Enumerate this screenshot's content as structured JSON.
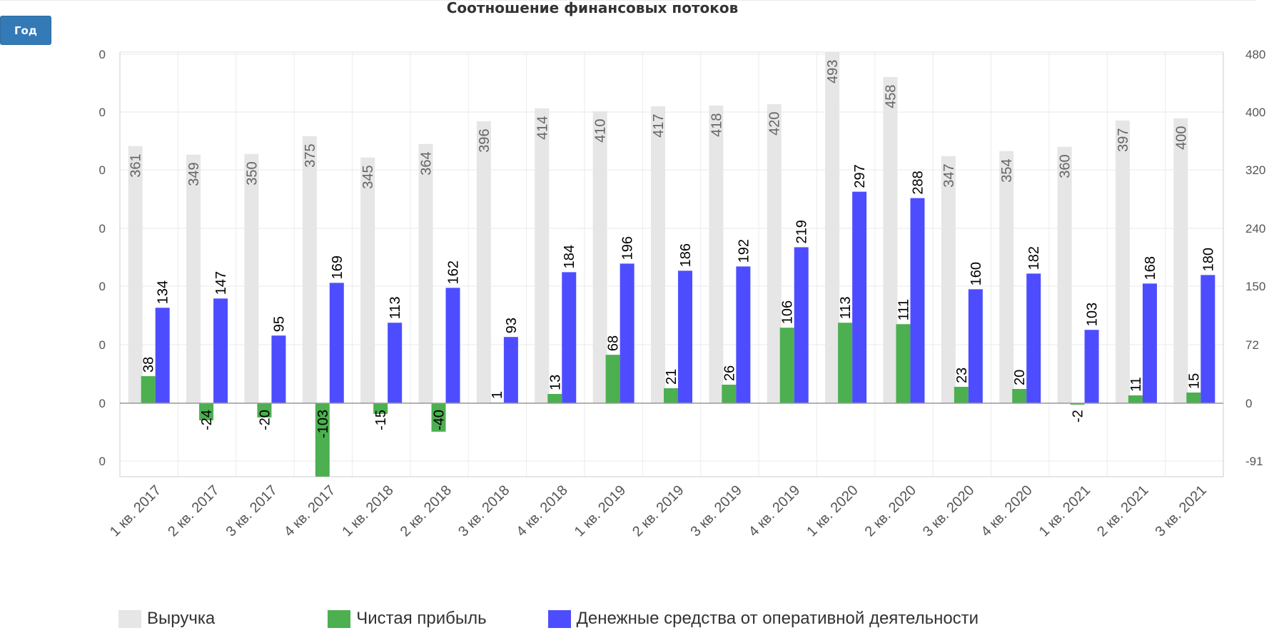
{
  "period_button": "Год",
  "chart_data": {
    "type": "bar",
    "title": "Соотношение финансовых потоков",
    "categories": [
      "1 кв. 2017",
      "2 кв. 2017",
      "3 кв. 2017",
      "4 кв. 2017",
      "1 кв. 2018",
      "2 кв. 2018",
      "3 кв. 2018",
      "4 кв. 2018",
      "1 кв. 2019",
      "2 кв. 2019",
      "3 кв. 2019",
      "4 кв. 2019",
      "1 кв. 2020",
      "2 кв. 2020",
      "3 кв. 2020",
      "4 кв. 2020",
      "1 кв. 2021",
      "2 кв. 2021",
      "3 кв. 2021"
    ],
    "series": [
      {
        "name": "Выручка",
        "color": "#e6e6e6",
        "label_color": "#666666",
        "axis": "left",
        "values": [
          361,
          349,
          350,
          375,
          345,
          364,
          396,
          414,
          410,
          417,
          418,
          420,
          493,
          458,
          347,
          354,
          360,
          397,
          400
        ]
      },
      {
        "name": "Чистая прибыль",
        "color": "#4caf50",
        "label_color": "#000000",
        "axis": "right",
        "values": [
          38,
          -24,
          -20,
          -103,
          -15,
          -40,
          1,
          13,
          68,
          21,
          26,
          106,
          113,
          111,
          23,
          20,
          -2,
          11,
          15
        ]
      },
      {
        "name": "Денежные средства от оперативной деятельности",
        "color": "#4d4dff",
        "label_color": "#000000",
        "axis": "right",
        "values": [
          134,
          147,
          95,
          169,
          113,
          162,
          93,
          184,
          196,
          186,
          192,
          219,
          297,
          288,
          160,
          182,
          103,
          168,
          180
        ]
      }
    ],
    "left_axis_ticks": [
      "0",
      "0",
      "0",
      "0",
      "0",
      "0",
      "0",
      "0"
    ],
    "right_axis_ticks": [
      "480",
      "400",
      "320",
      "240",
      "150",
      "72",
      "0",
      "-91"
    ],
    "left_axis_range": [
      -103,
      493
    ],
    "right_axis_range": [
      -103,
      493
    ],
    "grid": true,
    "legend_position": "bottom-left"
  }
}
